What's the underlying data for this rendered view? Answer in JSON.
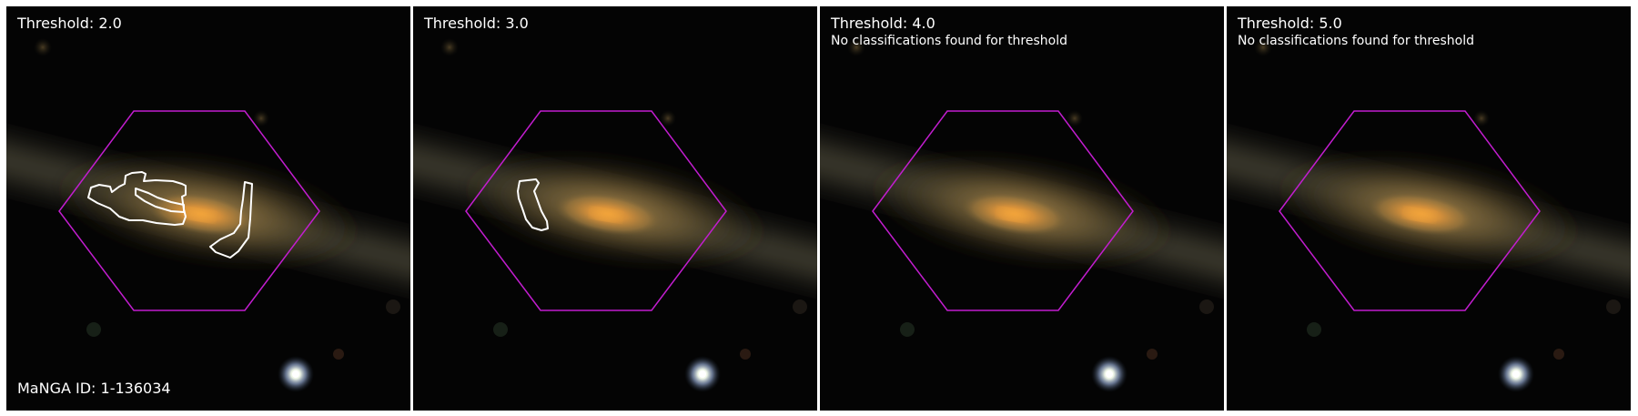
{
  "galaxy": {
    "manga_id_label": "MaNGA ID: 1-136034"
  },
  "panels": [
    {
      "threshold_label": "Threshold: 2.0",
      "note": ""
    },
    {
      "threshold_label": "Threshold: 3.0",
      "note": ""
    },
    {
      "threshold_label": "Threshold: 4.0",
      "note": "No classifications found for threshold"
    },
    {
      "threshold_label": "Threshold: 5.0",
      "note": "No classifications found for threshold"
    }
  ],
  "colors": {
    "hexagon": "#c21dcf",
    "contour": "#ffffff",
    "galaxy_core": "#e28b2a",
    "background": "#040404"
  }
}
